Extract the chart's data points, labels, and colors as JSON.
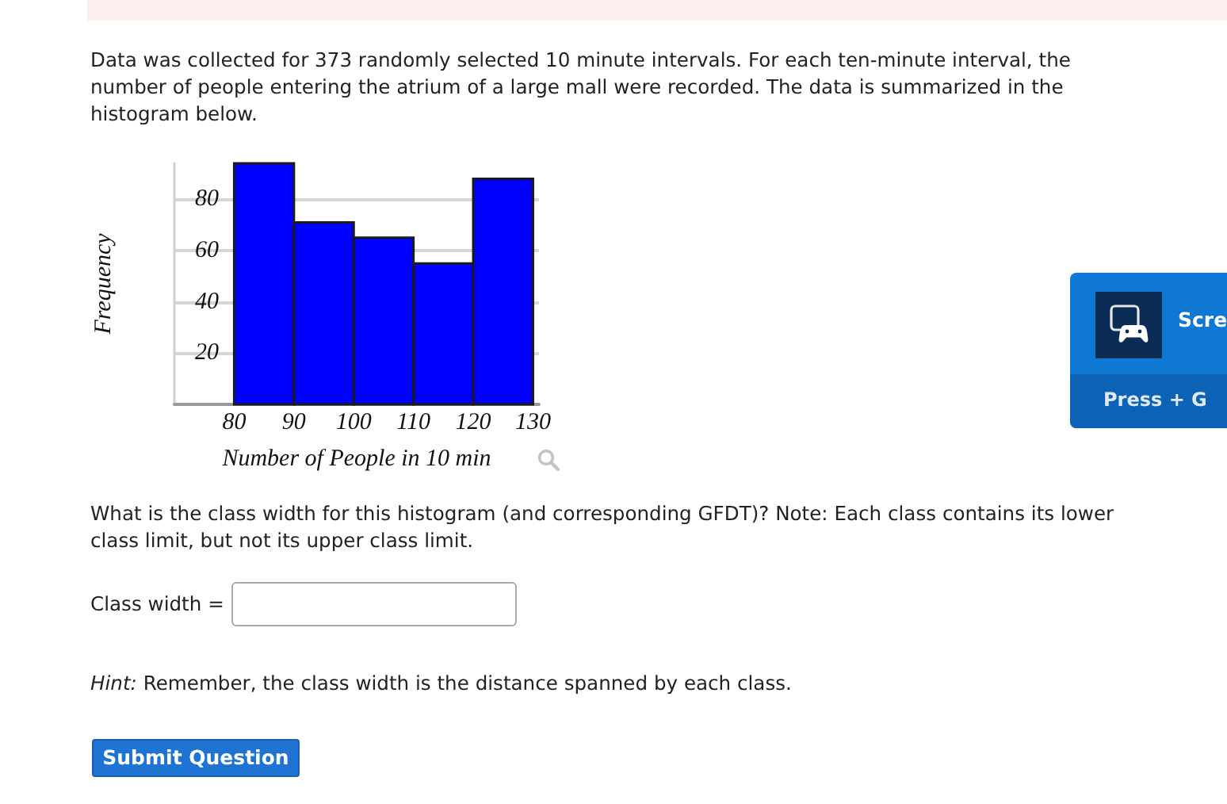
{
  "chart_data": {
    "type": "histogram",
    "xlabel": "Number of People in 10 min",
    "ylabel": "Frequency",
    "bins": [
      80,
      90,
      100,
      110,
      120,
      130
    ],
    "values": [
      94,
      71,
      65,
      55,
      88
    ],
    "color": "#0000ff",
    "xlim": [
      70,
      131
    ],
    "ylim": [
      0,
      94
    ],
    "xticks": [
      80,
      90,
      100,
      110,
      120,
      130
    ],
    "yticks": [
      20,
      40,
      60,
      80
    ],
    "grid": "y",
    "annotations": [
      "Data was collected for 373 randomly selected 10 minute intervals. For each ten-minute interval, the number of people entering the atrium of a large mall were recorded. The data is summarized in the histogram below.",
      "What is the class width for this histogram (and corresponding GFDT)? Note: Each class contains its lower class limit, but not its upper class limit.",
      "Class width =",
      "Hint:",
      "Remember, the class width is the distance spanned by each class.",
      "Submit Question",
      "Scre",
      "Press + G"
    ]
  }
}
